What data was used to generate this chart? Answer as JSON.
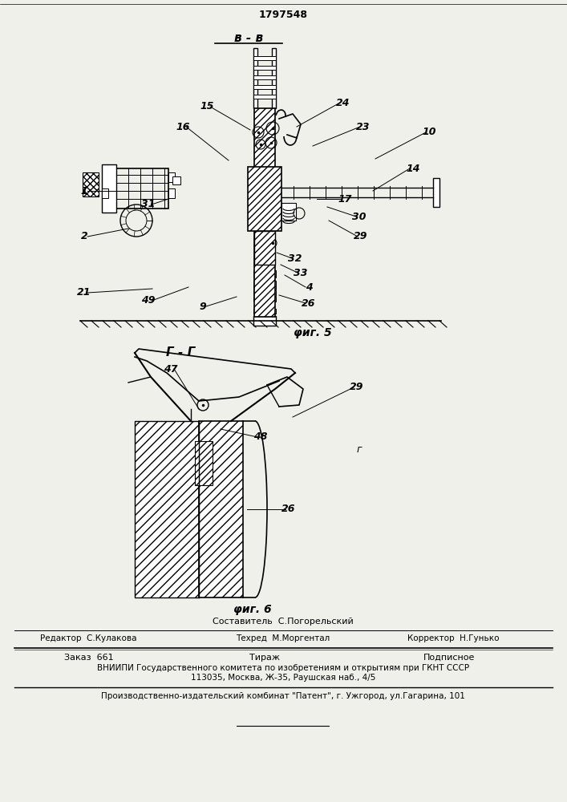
{
  "patent_number": "1797548",
  "background_color": "#f0f0eb",
  "fig5_label": "φиг. 5",
  "fig6_label": "φиг. 6",
  "section_vv": "в - в",
  "section_gg": "Г - Г",
  "footer_sostavitel": "Составитель  С.Погорельский",
  "footer_editor": "Редактор  С.Кулакова",
  "footer_techred": "Техред  М.Моргентал",
  "footer_korrektor": "Корректор  Н.Гунько",
  "footer_zakaz": "Заказ  661",
  "footer_tirazh": "Тираж",
  "footer_podpisnoe": "Подписное",
  "footer_vniip": "ВНИИПИ Государственного комитета по изобретениям и открытиям при ГКНТ СССР",
  "footer_address": "113035, Москва, Ж-35, Раушская наб., 4/5",
  "footer_publisher": "Производственно-издательский комбинат \"Патент\", г. Ужгород, ул.Гагарина, 101"
}
